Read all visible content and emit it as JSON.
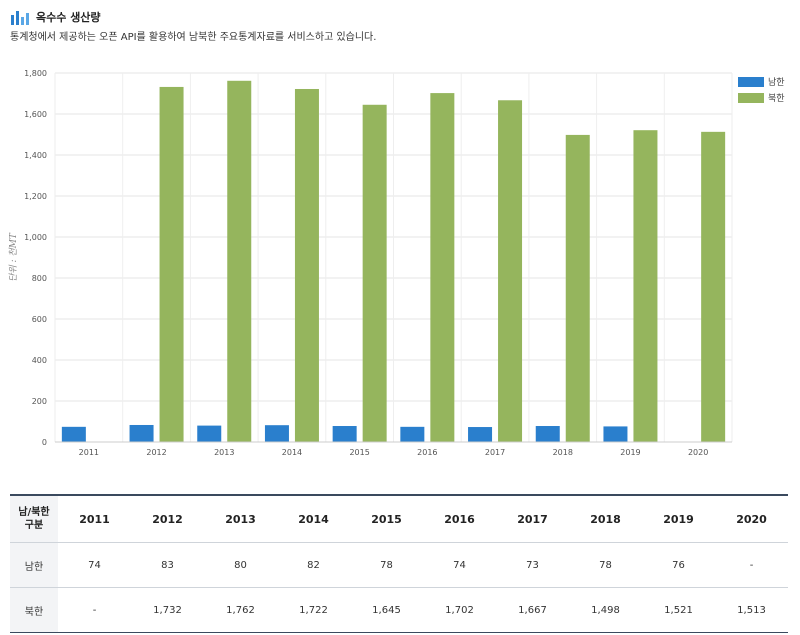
{
  "header": {
    "title": "옥수수 생산량",
    "subtitle": "통계청에서 제공하는 오픈 API를 활용하여 남북한 주요통계자료를 서비스하고 있습니다."
  },
  "chart_data": {
    "type": "bar",
    "categories": [
      "2011",
      "2012",
      "2013",
      "2014",
      "2015",
      "2016",
      "2017",
      "2018",
      "2019",
      "2020"
    ],
    "series": [
      {
        "name": "남한",
        "color": "#2a7fcd",
        "values": [
          74,
          83,
          80,
          82,
          78,
          74,
          73,
          78,
          76,
          null
        ]
      },
      {
        "name": "북한",
        "color": "#95b55d",
        "values": [
          null,
          1732,
          1762,
          1722,
          1645,
          1702,
          1667,
          1498,
          1521,
          1513
        ]
      }
    ],
    "ylabel": "단위 : 천MT",
    "ylim": [
      0,
      1800
    ],
    "yticks": [
      0,
      200,
      400,
      600,
      800,
      1000,
      1200,
      1400,
      1600,
      1800
    ],
    "ytick_labels": [
      "0",
      "200",
      "400",
      "600",
      "800",
      "1,000",
      "1,200",
      "1,400",
      "1,600",
      "1,800"
    ],
    "grid": true,
    "legend": "top-right"
  },
  "table": {
    "corner": [
      "남/북한",
      "구분"
    ],
    "years": [
      "2011",
      "2012",
      "2013",
      "2014",
      "2015",
      "2016",
      "2017",
      "2018",
      "2019",
      "2020"
    ],
    "rows": [
      {
        "label": "남한",
        "cells": [
          "74",
          "83",
          "80",
          "82",
          "78",
          "74",
          "73",
          "78",
          "76",
          "-"
        ]
      },
      {
        "label": "북한",
        "cells": [
          "-",
          "1,732",
          "1,762",
          "1,722",
          "1,645",
          "1,702",
          "1,667",
          "1,498",
          "1,521",
          "1,513"
        ]
      }
    ]
  }
}
